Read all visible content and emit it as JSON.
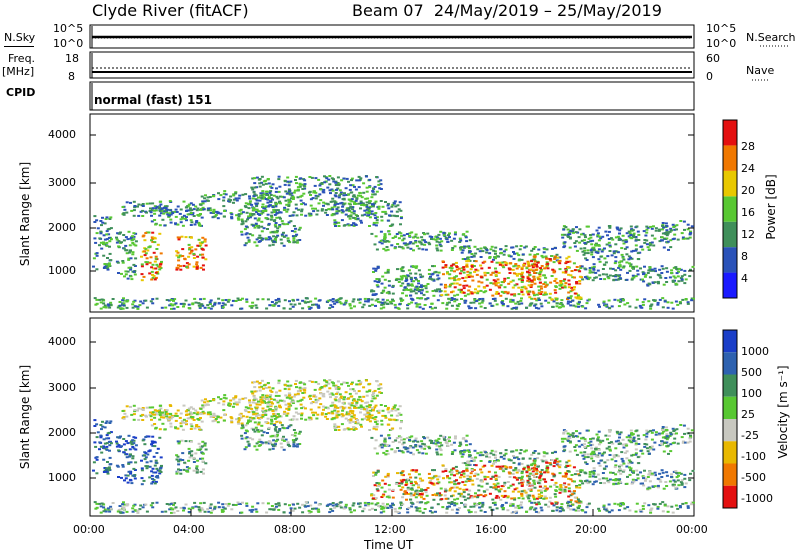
{
  "header": {
    "station": "Clyde River (fitACF)",
    "beam_date": "Beam 07  24/May/2019 – 25/May/2019"
  },
  "sky_panel": {
    "left_label": "N.Sky",
    "left_ticks": [
      "10^5",
      "10^0"
    ],
    "right_ticks": [
      "10^5",
      "10^0"
    ],
    "right_label": "N.Search"
  },
  "freq_panel": {
    "left_label_1": "Freq.",
    "left_label_2": "[MHz]",
    "left_ticks": [
      "18",
      "8"
    ],
    "right_ticks": [
      "60",
      "0"
    ],
    "right_label": "Nave"
  },
  "cpid_panel": {
    "label": "CPID",
    "mode_text": "normal (fast) 151"
  },
  "chart_data": [
    {
      "type": "heatmap",
      "title": "",
      "ylabel": "Slant Range [km]",
      "yticks": [
        "4000",
        "3000",
        "2000",
        "1000"
      ],
      "ylim": [
        180,
        4500
      ],
      "colorbar_label": "Power [dB]",
      "colorbar_ticks": [
        "28",
        "24",
        "20",
        "16",
        "12",
        "8",
        "4"
      ],
      "colors": [
        "#1a1aff",
        "#2a52b8",
        "#3f8f5a",
        "#58c832",
        "#e8c800",
        "#f07800",
        "#e41010"
      ]
    },
    {
      "type": "heatmap",
      "title": "",
      "xlabel": "Time UT",
      "ylabel": "Slant Range [km]",
      "yticks": [
        "4000",
        "3000",
        "2000",
        "1000"
      ],
      "xticks": [
        "00:00",
        "04:00",
        "08:00",
        "12:00",
        "16:00",
        "20:00",
        "00:00"
      ],
      "xlim": [
        "00:00",
        "24:00"
      ],
      "ylim": [
        180,
        4500
      ],
      "colorbar_label": "Velocity [m s⁻¹]",
      "colorbar_ticks": [
        "1000",
        "500",
        "100",
        "25",
        "-25",
        "-100",
        "-500",
        "-1000"
      ],
      "colors": [
        "#1a3ec8",
        "#2e62b0",
        "#3f8f5a",
        "#58c832",
        "#c8c8c0",
        "#e8b800",
        "#f07800",
        "#e41010"
      ]
    }
  ]
}
